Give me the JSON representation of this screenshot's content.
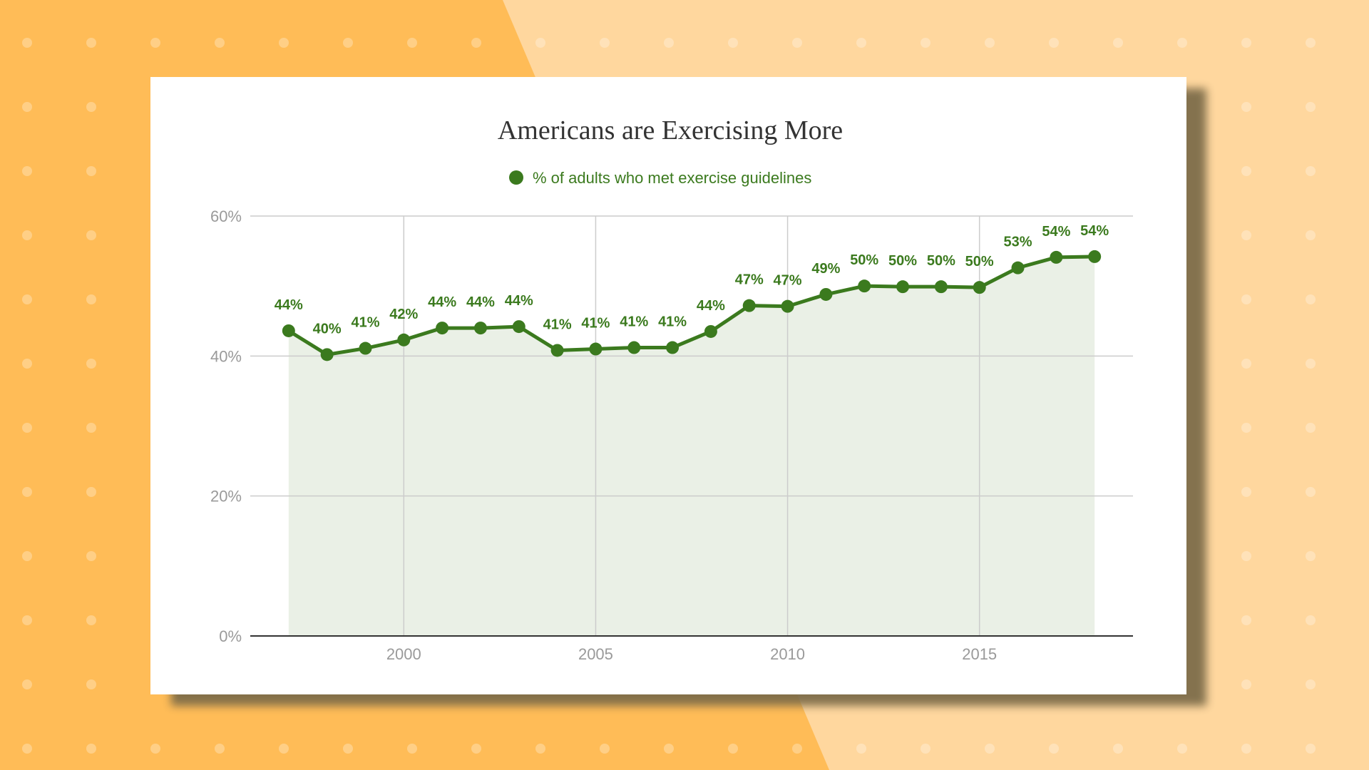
{
  "colors": {
    "background_left": "#FFBC57",
    "background_right": "#FFD79E",
    "dots": "#FFFFFF",
    "card": "#FFFFFF",
    "series": "#3B7A1E",
    "area_fill": "#EAF0E6",
    "gridline": "#CCCCCC",
    "axis": "#333333",
    "tick_label": "#9A9A9A"
  },
  "chart_data": {
    "type": "line",
    "title": "Americans are Exercising More",
    "legend_position": "top",
    "grid": true,
    "area_fill": true,
    "xlim": [
      1996,
      2019
    ],
    "ylim": [
      0,
      60
    ],
    "x_ticks": [
      2000,
      2005,
      2010,
      2015
    ],
    "y_ticks": [
      0,
      20,
      40,
      60
    ],
    "y_tick_labels": [
      "0%",
      "20%",
      "40%",
      "60%"
    ],
    "series": [
      {
        "name": "% of adults who met exercise guidelines",
        "x": [
          1997,
          1998,
          1999,
          2000,
          2001,
          2002,
          2003,
          2004,
          2005,
          2006,
          2007,
          2008,
          2009,
          2010,
          2011,
          2012,
          2013,
          2014,
          2015,
          2016,
          2017,
          2018
        ],
        "values": [
          43.6,
          40.2,
          41.1,
          42.3,
          44.0,
          44.0,
          44.2,
          40.8,
          41.0,
          41.2,
          41.2,
          43.5,
          47.2,
          47.1,
          48.8,
          50.0,
          49.9,
          49.9,
          49.8,
          52.6,
          54.1,
          54.2
        ],
        "labels": [
          "44%",
          "40%",
          "41%",
          "42%",
          "44%",
          "44%",
          "44%",
          "41%",
          "41%",
          "41%",
          "41%",
          "44%",
          "47%",
          "47%",
          "49%",
          "50%",
          "50%",
          "50%",
          "50%",
          "53%",
          "54%",
          "54%"
        ]
      }
    ]
  }
}
